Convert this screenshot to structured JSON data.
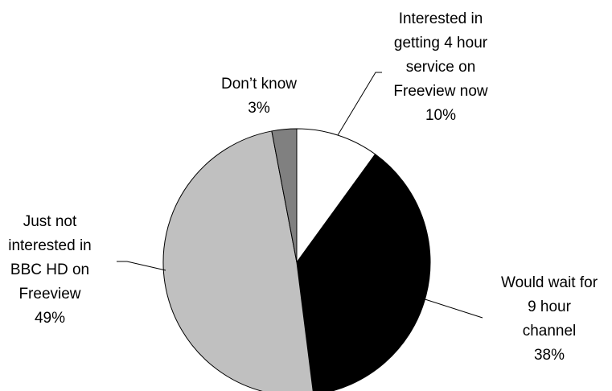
{
  "chart_data": {
    "type": "pie",
    "slices": [
      {
        "label": [
          "Interested in",
          "getting 4 hour",
          "service on",
          "Freeview now"
        ],
        "value_label": "10%",
        "value": 10,
        "color": "#ffffff"
      },
      {
        "label": [
          "Would wait for",
          "9 hour",
          "channel"
        ],
        "value_label": "38%",
        "value": 38,
        "color": "#000000"
      },
      {
        "label": [
          "Just not",
          "interested in",
          "BBC HD on",
          "Freeview"
        ],
        "value_label": "49%",
        "value": 49,
        "color": "#c0c0c0"
      },
      {
        "label": [
          "Don’t know"
        ],
        "value_label": "3%",
        "value": 3,
        "color": "#808080"
      }
    ],
    "start_angle_deg": 0,
    "direction": "clockwise",
    "legend": "none"
  }
}
